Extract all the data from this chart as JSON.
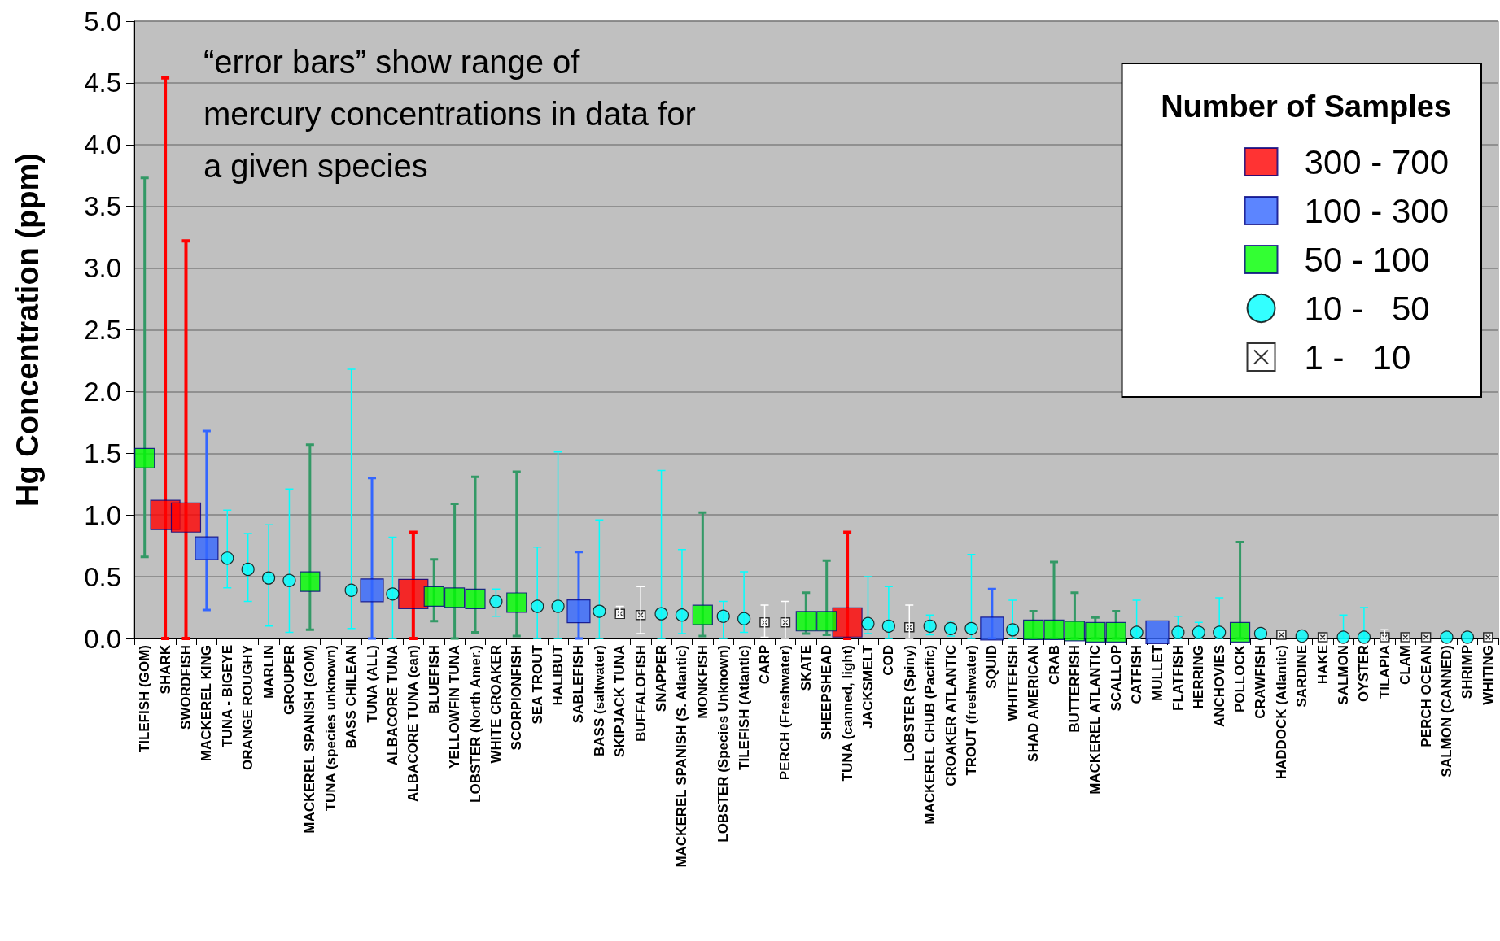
{
  "chart_data": {
    "type": "scatter",
    "ylabel": "Hg Concentration (ppm)",
    "legend_title": "Number of Samples",
    "legend": "top right",
    "grid": "y",
    "annotations": [
      "“error bars” show range of mercury concentrations in data for a given species"
    ],
    "categories": [
      "TILEFISH (GOM)",
      "SHARK",
      "SWORDFISH",
      "MACKEREL KING",
      "TUNA - BIGEYE",
      "ORANGE ROUGHY",
      "MARLIN",
      "GROUPER",
      "MACKEREL SPANISH (GOM)",
      "TUNA (species unknown)",
      "BASS CHILEAN",
      "TUNA (ALL)",
      "ALBACORE TUNA",
      "ALBACORE TUNA (can)",
      "BLUEFISH",
      "YELLOWFIN TUNA",
      "LOBSTER (North Amer.)",
      "WHITE CROAKER",
      "SCORPIONFISH",
      "SEA TROUT",
      "HALIBUT",
      "SABLEFISH",
      "BASS (saltwater)",
      "SKIPJACK TUNA",
      "BUFFALOFISH",
      "SNAPPER",
      "MACKEREL SPANISH (S. Atlantic)",
      "MONKFISH",
      "LOBSTER (Species Unknown)",
      "TILEFISH (Atlantic)",
      "CARP",
      "PERCH (Freshwater)",
      "SKATE",
      "SHEEPSHEAD",
      "TUNA (canned, light)",
      "JACKSMELT",
      "COD",
      "LOBSTER (Spiny)",
      "MACKEREL CHUB (Pacific)",
      "CROAKER ATLANTIC",
      "TROUT (freshwater)",
      "SQUID",
      "WHITEFISH",
      "SHAD AMERICAN",
      "CRAB",
      "BUTTERFISH",
      "MACKEREL ATLANTIC",
      "SCALLOP",
      "CATFISH",
      "MULLET",
      "FLATFISH",
      "HERRING",
      "ANCHOVIES",
      "POLLOCK",
      "CRAWFISH",
      "HADDOCK (Atlantic)",
      "SARDINE",
      "HAKE",
      "SALMON",
      "OYSTER",
      "TILAPIA",
      "CLAM",
      "PERCH OCEAN",
      "SALMON (CANNED)",
      "SHRIMP",
      "WHITING"
    ],
    "ylim": [
      0,
      5
    ],
    "yticks": [
      {
        "value": 0,
        "label": "0.0"
      },
      {
        "value": 0.5,
        "label": "0.5"
      },
      {
        "value": 1,
        "label": "1.0"
      },
      {
        "value": 1.5,
        "label": "1.5"
      },
      {
        "value": 2,
        "label": "2.0"
      },
      {
        "value": 2.5,
        "label": "2.5"
      },
      {
        "value": 3,
        "label": "3.0"
      },
      {
        "value": 3.5,
        "label": "3.5"
      },
      {
        "value": 4,
        "label": "4.0"
      },
      {
        "value": 4.5,
        "label": "4.5"
      },
      {
        "value": 5,
        "label": "5.0"
      }
    ],
    "series": [
      {
        "name": "300 - 700",
        "color": "#ff0000",
        "marker": "square",
        "values": [
          null,
          1.0,
          0.98,
          null,
          null,
          null,
          null,
          null,
          null,
          null,
          null,
          null,
          null,
          0.36,
          null,
          null,
          null,
          null,
          null,
          null,
          null,
          null,
          null,
          null,
          null,
          null,
          null,
          null,
          null,
          null,
          null,
          null,
          null,
          null,
          0.13,
          null,
          null,
          null,
          null,
          null,
          null,
          null,
          null,
          null,
          null,
          null,
          null,
          null,
          null,
          null,
          null,
          null,
          null,
          null,
          null,
          null,
          null,
          null,
          null,
          null,
          null,
          null,
          null,
          null,
          null,
          null
        ],
        "errors": [
          null,
          [
            0,
            4.54
          ],
          [
            0,
            3.22
          ],
          null,
          null,
          null,
          null,
          null,
          null,
          null,
          null,
          null,
          null,
          [
            0,
            0.86
          ],
          null,
          null,
          null,
          null,
          null,
          null,
          null,
          null,
          null,
          null,
          null,
          null,
          null,
          null,
          null,
          null,
          null,
          null,
          null,
          null,
          [
            0,
            0.86
          ],
          null,
          null,
          null,
          null,
          null,
          null,
          null,
          null,
          null,
          null,
          null,
          null,
          null,
          null,
          null,
          null,
          null,
          null,
          null,
          null,
          null,
          null,
          null,
          null,
          null,
          null,
          null,
          null,
          null,
          null,
          null
        ]
      },
      {
        "name": "100 - 300",
        "color": "#3366ff",
        "marker": "square",
        "values": [
          null,
          null,
          null,
          0.73,
          null,
          null,
          null,
          null,
          null,
          null,
          null,
          0.39,
          null,
          null,
          null,
          null,
          null,
          null,
          null,
          null,
          null,
          0.22,
          null,
          null,
          null,
          null,
          null,
          null,
          null,
          null,
          null,
          null,
          null,
          null,
          null,
          null,
          null,
          null,
          null,
          null,
          null,
          0.08,
          null,
          null,
          null,
          null,
          null,
          null,
          null,
          0.05,
          null,
          null,
          null,
          null,
          null,
          null,
          null,
          null,
          null,
          null,
          null,
          null,
          null,
          null,
          null,
          null
        ],
        "errors": [
          null,
          null,
          null,
          [
            0.23,
            1.68
          ],
          null,
          null,
          null,
          null,
          null,
          null,
          null,
          [
            0,
            1.3
          ],
          null,
          null,
          null,
          null,
          null,
          null,
          null,
          null,
          null,
          [
            0,
            0.7
          ],
          null,
          null,
          null,
          null,
          null,
          null,
          null,
          null,
          null,
          null,
          null,
          null,
          null,
          null,
          null,
          null,
          null,
          null,
          null,
          [
            0,
            0.4
          ],
          null,
          null,
          null,
          null,
          null,
          null,
          null,
          null,
          null,
          null,
          null,
          null,
          null,
          null,
          null,
          null,
          null,
          null,
          null,
          null,
          null,
          null,
          null,
          null
        ]
      },
      {
        "name": "50 - 100",
        "color": "#00ff00",
        "marker": "square",
        "values": [
          1.46,
          null,
          null,
          null,
          null,
          null,
          null,
          null,
          0.46,
          null,
          null,
          null,
          null,
          null,
          0.34,
          0.33,
          0.32,
          null,
          0.29,
          null,
          null,
          null,
          null,
          null,
          null,
          null,
          null,
          0.19,
          null,
          null,
          null,
          null,
          0.14,
          0.14,
          null,
          null,
          null,
          null,
          null,
          null,
          null,
          null,
          null,
          0.07,
          0.07,
          0.06,
          0.05,
          0.05,
          null,
          null,
          null,
          null,
          null,
          0.05,
          null,
          null,
          null,
          null,
          null,
          null,
          null,
          null,
          null,
          null,
          null,
          null
        ],
        "errors": [
          [
            0.66,
            3.73
          ],
          null,
          null,
          null,
          null,
          null,
          null,
          null,
          [
            0.07,
            1.57
          ],
          null,
          null,
          null,
          null,
          null,
          [
            0.14,
            0.64
          ],
          [
            0,
            1.09
          ],
          [
            0.05,
            1.31
          ],
          null,
          [
            0.02,
            1.35
          ],
          null,
          null,
          null,
          null,
          null,
          null,
          null,
          null,
          [
            0.02,
            1.02
          ],
          null,
          null,
          null,
          null,
          [
            0.04,
            0.37
          ],
          [
            0.03,
            0.63
          ],
          null,
          null,
          null,
          null,
          null,
          null,
          null,
          null,
          null,
          [
            0,
            0.22
          ],
          [
            0,
            0.62
          ],
          [
            0,
            0.37
          ],
          [
            0,
            0.17
          ],
          [
            0,
            0.22
          ],
          null,
          null,
          null,
          null,
          null,
          [
            0,
            0.78
          ],
          null,
          null,
          null,
          null,
          null,
          null,
          null,
          null,
          null,
          null,
          null,
          null
        ]
      },
      {
        "name": "10 -   50",
        "color": "#00ffff",
        "marker": "circle",
        "values": [
          null,
          null,
          null,
          null,
          0.65,
          0.56,
          0.49,
          0.47,
          null,
          null,
          0.39,
          null,
          0.36,
          null,
          null,
          null,
          null,
          0.3,
          null,
          0.26,
          0.26,
          null,
          0.22,
          null,
          null,
          0.2,
          0.19,
          null,
          0.18,
          0.16,
          null,
          null,
          null,
          null,
          null,
          0.12,
          0.1,
          null,
          0.1,
          0.08,
          0.08,
          null,
          0.07,
          null,
          null,
          null,
          null,
          null,
          0.05,
          null,
          0.05,
          0.05,
          0.05,
          null,
          0.04,
          null,
          0.02,
          null,
          0.01,
          0.01,
          null,
          null,
          null,
          0.01,
          0.01,
          null
        ],
        "errors": [
          null,
          null,
          null,
          null,
          [
            0.41,
            1.04
          ],
          [
            0.3,
            0.85
          ],
          [
            0.1,
            0.92
          ],
          [
            0.05,
            1.21
          ],
          null,
          null,
          [
            0.08,
            2.18
          ],
          null,
          [
            0,
            0.82
          ],
          null,
          null,
          null,
          null,
          [
            0.18,
            0.4
          ],
          null,
          [
            0,
            0.74
          ],
          [
            0,
            1.51
          ],
          null,
          [
            0,
            0.96
          ],
          null,
          null,
          [
            0,
            1.36
          ],
          [
            0.04,
            0.72
          ],
          null,
          [
            0,
            0.3
          ],
          [
            0.05,
            0.54
          ],
          null,
          null,
          null,
          null,
          null,
          [
            0.04,
            0.5
          ],
          [
            0,
            0.42
          ],
          null,
          [
            0.03,
            0.19
          ],
          [
            0.02,
            0.14
          ],
          [
            0,
            0.68
          ],
          null,
          [
            0,
            0.31
          ],
          null,
          null,
          null,
          null,
          null,
          [
            0,
            0.31
          ],
          null,
          [
            0,
            0.18
          ],
          [
            0,
            0.13
          ],
          [
            0,
            0.33
          ],
          null,
          null,
          null,
          null,
          null,
          [
            0,
            0.19
          ],
          [
            0,
            0.25
          ],
          null,
          null,
          null,
          null,
          null,
          null
        ]
      },
      {
        "name": "1 -   10",
        "color": "#ffffff",
        "marker": "cross",
        "values": [
          null,
          null,
          null,
          null,
          null,
          null,
          null,
          null,
          null,
          null,
          null,
          null,
          null,
          null,
          null,
          null,
          null,
          null,
          null,
          null,
          null,
          null,
          null,
          0.2,
          0.19,
          null,
          null,
          null,
          null,
          null,
          0.13,
          0.13,
          null,
          null,
          null,
          null,
          null,
          0.09,
          null,
          null,
          null,
          null,
          null,
          null,
          null,
          null,
          null,
          null,
          null,
          null,
          null,
          null,
          null,
          null,
          null,
          0.03,
          null,
          0.01,
          null,
          null,
          0.01,
          0.01,
          0.01,
          null,
          null,
          0.01
        ],
        "errors": [
          null,
          null,
          null,
          null,
          null,
          null,
          null,
          null,
          null,
          null,
          null,
          null,
          null,
          null,
          null,
          null,
          null,
          null,
          null,
          null,
          null,
          null,
          null,
          [
            0.17,
            0.26
          ],
          [
            0.04,
            0.42
          ],
          null,
          null,
          null,
          null,
          null,
          [
            0.01,
            0.27
          ],
          [
            0,
            0.3
          ],
          null,
          null,
          null,
          null,
          null,
          [
            0,
            0.27
          ],
          null,
          null,
          null,
          null,
          null,
          null,
          null,
          null,
          null,
          null,
          null,
          null,
          null,
          null,
          null,
          null,
          null,
          null,
          null,
          null,
          null,
          null,
          [
            0,
            0.07
          ],
          null,
          null,
          null,
          null,
          null
        ]
      }
    ]
  }
}
